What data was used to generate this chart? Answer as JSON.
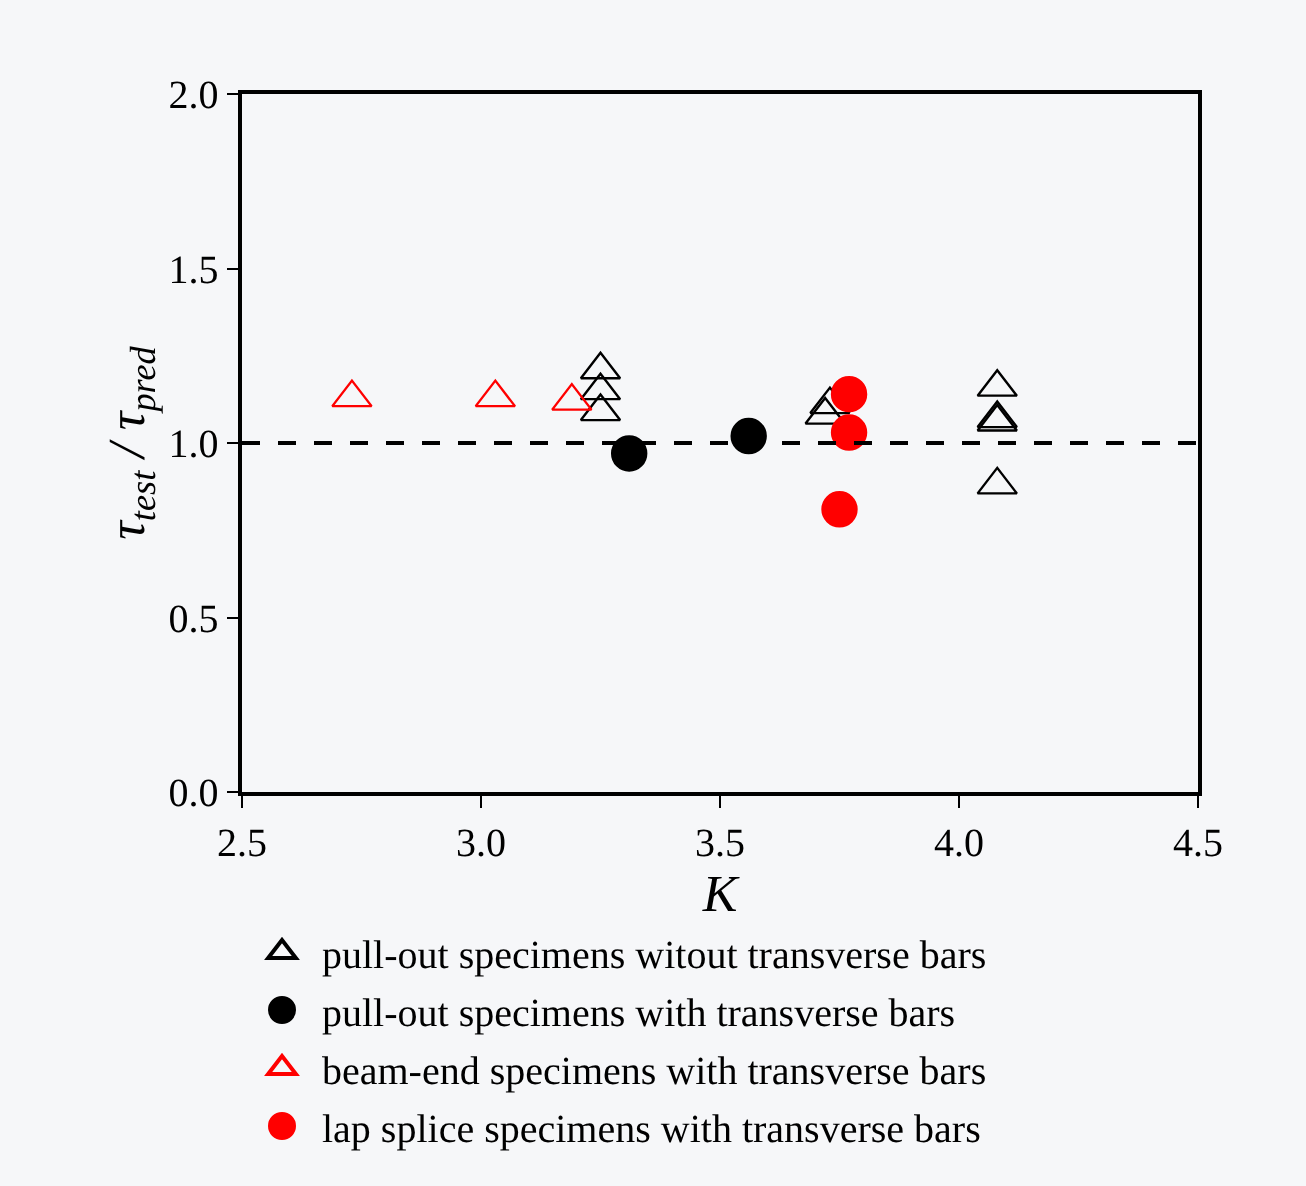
{
  "chart_data": {
    "type": "scatter",
    "xlabel": "K",
    "ylabel": "τ$_{test}$ / τ$_{pred}$",
    "xlim": [
      2.5,
      4.5
    ],
    "xticks": [
      2.5,
      {
        "value": 3,
        "label": "3.0"
      },
      3.5,
      {
        "value": 4,
        "label": "4.0"
      },
      4.5
    ],
    "ylim": [
      0,
      2
    ],
    "yticks": [
      {
        "value": 0,
        "label": "0.0"
      },
      0.5,
      {
        "value": 1,
        "label": "1.0"
      },
      1.5,
      {
        "value": 2,
        "label": "2.0"
      }
    ],
    "grid": false,
    "legend": "bottom",
    "ref_lines": [
      {
        "axis": "y",
        "value": 1.0,
        "line_style": "dashed",
        "color": "#000000"
      }
    ],
    "series": [
      {
        "name": "pull-out specimens witout transverse bars",
        "color": "#000000",
        "marker": "triangle-open",
        "x": [
          3.25,
          3.25,
          3.25,
          3.72,
          3.73,
          4.08,
          4.08,
          4.08,
          4.08
        ],
        "values": [
          1.21,
          1.15,
          1.09,
          1.08,
          1.11,
          1.16,
          1.07,
          1.06,
          0.88
        ]
      },
      {
        "name": "pull-out specimens with transverse bars",
        "color": "#000000",
        "marker": "circle",
        "x": [
          3.31,
          3.56
        ],
        "values": [
          0.97,
          1.02
        ]
      },
      {
        "name": "beam-end specimens with transverse bars",
        "color": "#ff0000",
        "marker": "triangle-open",
        "x": [
          2.73,
          3.03,
          3.19
        ],
        "values": [
          1.13,
          1.13,
          1.12
        ]
      },
      {
        "name": "lap splice specimens with transverse bars",
        "color": "#ff0000",
        "marker": "circle",
        "x": [
          3.77,
          3.77,
          3.75
        ],
        "values": [
          1.14,
          1.03,
          0.81
        ]
      }
    ]
  }
}
